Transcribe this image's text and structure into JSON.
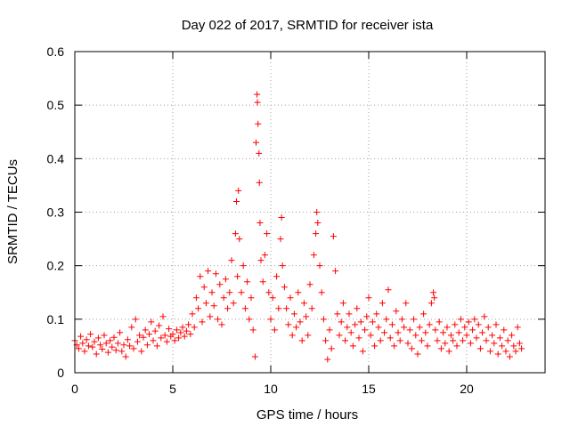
{
  "chart_data": {
    "type": "scatter",
    "title": "Day 022 of 2017, SRMTID for receiver ista",
    "xlabel": "GPS time / hours",
    "ylabel": "SRMTID / TECUs",
    "xlim": [
      0,
      24
    ],
    "ylim": [
      0,
      0.6
    ],
    "xticks": [
      "0",
      "5",
      "10",
      "15",
      "20"
    ],
    "yticks": [
      "0",
      "0.1",
      "0.2",
      "0.3",
      "0.4",
      "0.5",
      "0.6"
    ],
    "grid": true,
    "marker": "+",
    "color": "#ff0000",
    "series": [
      {
        "name": "SRMTID",
        "points": [
          [
            0.0,
            0.06
          ],
          [
            0.1,
            0.052
          ],
          [
            0.2,
            0.045
          ],
          [
            0.3,
            0.068
          ],
          [
            0.4,
            0.055
          ],
          [
            0.5,
            0.04
          ],
          [
            0.6,
            0.062
          ],
          [
            0.7,
            0.05
          ],
          [
            0.8,
            0.072
          ],
          [
            0.9,
            0.048
          ],
          [
            1.0,
            0.058
          ],
          [
            1.1,
            0.035
          ],
          [
            1.2,
            0.065
          ],
          [
            1.3,
            0.052
          ],
          [
            1.4,
            0.044
          ],
          [
            1.5,
            0.07
          ],
          [
            1.6,
            0.055
          ],
          [
            1.7,
            0.038
          ],
          [
            1.8,
            0.06
          ],
          [
            1.9,
            0.048
          ],
          [
            2.0,
            0.066
          ],
          [
            2.1,
            0.042
          ],
          [
            2.2,
            0.055
          ],
          [
            2.3,
            0.075
          ],
          [
            2.4,
            0.04
          ],
          [
            2.5,
            0.052
          ],
          [
            2.6,
            0.03
          ],
          [
            2.7,
            0.062
          ],
          [
            2.8,
            0.05
          ],
          [
            2.9,
            0.085
          ],
          [
            3.0,
            0.045
          ],
          [
            3.1,
            0.1
          ],
          [
            3.2,
            0.058
          ],
          [
            3.3,
            0.07
          ],
          [
            3.4,
            0.04
          ],
          [
            3.5,
            0.066
          ],
          [
            3.6,
            0.08
          ],
          [
            3.7,
            0.052
          ],
          [
            3.8,
            0.072
          ],
          [
            3.9,
            0.095
          ],
          [
            4.0,
            0.06
          ],
          [
            4.1,
            0.078
          ],
          [
            4.2,
            0.05
          ],
          [
            4.3,
            0.088
          ],
          [
            4.4,
            0.065
          ],
          [
            4.5,
            0.105
          ],
          [
            4.6,
            0.07
          ],
          [
            4.7,
            0.058
          ],
          [
            4.8,
            0.082
          ],
          [
            4.9,
            0.068
          ],
          [
            5.0,
            0.072
          ],
          [
            5.1,
            0.06
          ],
          [
            5.2,
            0.08
          ],
          [
            5.3,
            0.065
          ],
          [
            5.4,
            0.075
          ],
          [
            5.5,
            0.085
          ],
          [
            5.6,
            0.068
          ],
          [
            5.7,
            0.078
          ],
          [
            5.8,
            0.09
          ],
          [
            5.9,
            0.072
          ],
          [
            6.0,
            0.11
          ],
          [
            6.1,
            0.085
          ],
          [
            6.2,
            0.14
          ],
          [
            6.3,
            0.12
          ],
          [
            6.4,
            0.18
          ],
          [
            6.5,
            0.095
          ],
          [
            6.6,
            0.16
          ],
          [
            6.7,
            0.13
          ],
          [
            6.8,
            0.19
          ],
          [
            6.9,
            0.105
          ],
          [
            7.0,
            0.15
          ],
          [
            7.1,
            0.125
          ],
          [
            7.2,
            0.185
          ],
          [
            7.3,
            0.1
          ],
          [
            7.4,
            0.165
          ],
          [
            7.5,
            0.09
          ],
          [
            7.6,
            0.14
          ],
          [
            7.7,
            0.175
          ],
          [
            7.8,
            0.12
          ],
          [
            7.9,
            0.15
          ],
          [
            8.0,
            0.21
          ],
          [
            8.1,
            0.13
          ],
          [
            8.2,
            0.26
          ],
          [
            8.25,
            0.32
          ],
          [
            8.3,
            0.18
          ],
          [
            8.35,
            0.34
          ],
          [
            8.4,
            0.25
          ],
          [
            8.5,
            0.15
          ],
          [
            8.6,
            0.2
          ],
          [
            8.7,
            0.12
          ],
          [
            8.8,
            0.17
          ],
          [
            8.9,
            0.1
          ],
          [
            9.0,
            0.14
          ],
          [
            9.1,
            0.08
          ],
          [
            9.2,
            0.03
          ],
          [
            9.25,
            0.43
          ],
          [
            9.3,
            0.52
          ],
          [
            9.32,
            0.505
          ],
          [
            9.35,
            0.465
          ],
          [
            9.4,
            0.41
          ],
          [
            9.42,
            0.355
          ],
          [
            9.45,
            0.28
          ],
          [
            9.5,
            0.21
          ],
          [
            9.6,
            0.17
          ],
          [
            9.7,
            0.22
          ],
          [
            9.8,
            0.26
          ],
          [
            9.9,
            0.15
          ],
          [
            10.0,
            0.1
          ],
          [
            10.1,
            0.14
          ],
          [
            10.2,
            0.08
          ],
          [
            10.3,
            0.18
          ],
          [
            10.4,
            0.12
          ],
          [
            10.5,
            0.25
          ],
          [
            10.55,
            0.29
          ],
          [
            10.6,
            0.2
          ],
          [
            10.7,
            0.16
          ],
          [
            10.8,
            0.12
          ],
          [
            10.9,
            0.09
          ],
          [
            11.0,
            0.14
          ],
          [
            11.1,
            0.07
          ],
          [
            11.2,
            0.11
          ],
          [
            11.3,
            0.085
          ],
          [
            11.4,
            0.15
          ],
          [
            11.5,
            0.095
          ],
          [
            11.6,
            0.06
          ],
          [
            11.7,
            0.13
          ],
          [
            11.8,
            0.105
          ],
          [
            11.9,
            0.07
          ],
          [
            12.0,
            0.165
          ],
          [
            12.1,
            0.12
          ],
          [
            12.2,
            0.22
          ],
          [
            12.3,
            0.26
          ],
          [
            12.35,
            0.3
          ],
          [
            12.4,
            0.28
          ],
          [
            12.5,
            0.2
          ],
          [
            12.6,
            0.15
          ],
          [
            12.7,
            0.1
          ],
          [
            12.8,
            0.06
          ],
          [
            12.9,
            0.025
          ],
          [
            13.0,
            0.08
          ],
          [
            13.1,
            0.045
          ],
          [
            13.2,
            0.255
          ],
          [
            13.3,
            0.19
          ],
          [
            13.4,
            0.11
          ],
          [
            13.5,
            0.07
          ],
          [
            13.6,
            0.095
          ],
          [
            13.7,
            0.13
          ],
          [
            13.8,
            0.06
          ],
          [
            13.9,
            0.085
          ],
          [
            14.0,
            0.11
          ],
          [
            14.1,
            0.075
          ],
          [
            14.2,
            0.05
          ],
          [
            14.3,
            0.09
          ],
          [
            14.4,
            0.12
          ],
          [
            14.5,
            0.065
          ],
          [
            14.6,
            0.095
          ],
          [
            14.7,
            0.04
          ],
          [
            14.8,
            0.08
          ],
          [
            14.9,
            0.105
          ],
          [
            15.0,
            0.14
          ],
          [
            15.1,
            0.07
          ],
          [
            15.2,
            0.095
          ],
          [
            15.3,
            0.05
          ],
          [
            15.4,
            0.11
          ],
          [
            15.5,
            0.085
          ],
          [
            15.6,
            0.06
          ],
          [
            15.7,
            0.13
          ],
          [
            15.8,
            0.075
          ],
          [
            15.9,
            0.1
          ],
          [
            16.0,
            0.155
          ],
          [
            16.1,
            0.065
          ],
          [
            16.2,
            0.09
          ],
          [
            16.3,
            0.05
          ],
          [
            16.4,
            0.115
          ],
          [
            16.5,
            0.075
          ],
          [
            16.6,
            0.06
          ],
          [
            16.7,
            0.1
          ],
          [
            16.8,
            0.085
          ],
          [
            16.9,
            0.13
          ],
          [
            17.0,
            0.055
          ],
          [
            17.1,
            0.08
          ],
          [
            17.2,
            0.045
          ],
          [
            17.3,
            0.1
          ],
          [
            17.4,
            0.07
          ],
          [
            17.5,
            0.035
          ],
          [
            17.6,
            0.085
          ],
          [
            17.7,
            0.06
          ],
          [
            17.8,
            0.11
          ],
          [
            17.9,
            0.075
          ],
          [
            18.0,
            0.05
          ],
          [
            18.1,
            0.09
          ],
          [
            18.2,
            0.13
          ],
          [
            18.3,
            0.15
          ],
          [
            18.35,
            0.14
          ],
          [
            18.4,
            0.08
          ],
          [
            18.5,
            0.06
          ],
          [
            18.6,
            0.095
          ],
          [
            18.7,
            0.045
          ],
          [
            18.8,
            0.075
          ],
          [
            18.9,
            0.055
          ],
          [
            19.0,
            0.085
          ],
          [
            19.1,
            0.04
          ],
          [
            19.2,
            0.07
          ],
          [
            19.3,
            0.06
          ],
          [
            19.4,
            0.09
          ],
          [
            19.5,
            0.05
          ],
          [
            19.6,
            0.075
          ],
          [
            19.7,
            0.1
          ],
          [
            19.8,
            0.06
          ],
          [
            19.9,
            0.085
          ],
          [
            20.0,
            0.07
          ],
          [
            20.1,
            0.095
          ],
          [
            20.2,
            0.055
          ],
          [
            20.3,
            0.08
          ],
          [
            20.4,
            0.1
          ],
          [
            20.5,
            0.065
          ],
          [
            20.6,
            0.09
          ],
          [
            20.7,
            0.045
          ],
          [
            20.8,
            0.075
          ],
          [
            20.9,
            0.105
          ],
          [
            21.0,
            0.06
          ],
          [
            21.1,
            0.085
          ],
          [
            21.2,
            0.04
          ],
          [
            21.3,
            0.07
          ],
          [
            21.4,
            0.055
          ],
          [
            21.5,
            0.09
          ],
          [
            21.6,
            0.035
          ],
          [
            21.7,
            0.065
          ],
          [
            21.8,
            0.05
          ],
          [
            21.9,
            0.08
          ],
          [
            22.0,
            0.04
          ],
          [
            22.1,
            0.06
          ],
          [
            22.2,
            0.03
          ],
          [
            22.3,
            0.07
          ],
          [
            22.4,
            0.05
          ],
          [
            22.5,
            0.04
          ],
          [
            22.6,
            0.085
          ],
          [
            22.7,
            0.055
          ],
          [
            22.8,
            0.045
          ]
        ]
      }
    ]
  }
}
